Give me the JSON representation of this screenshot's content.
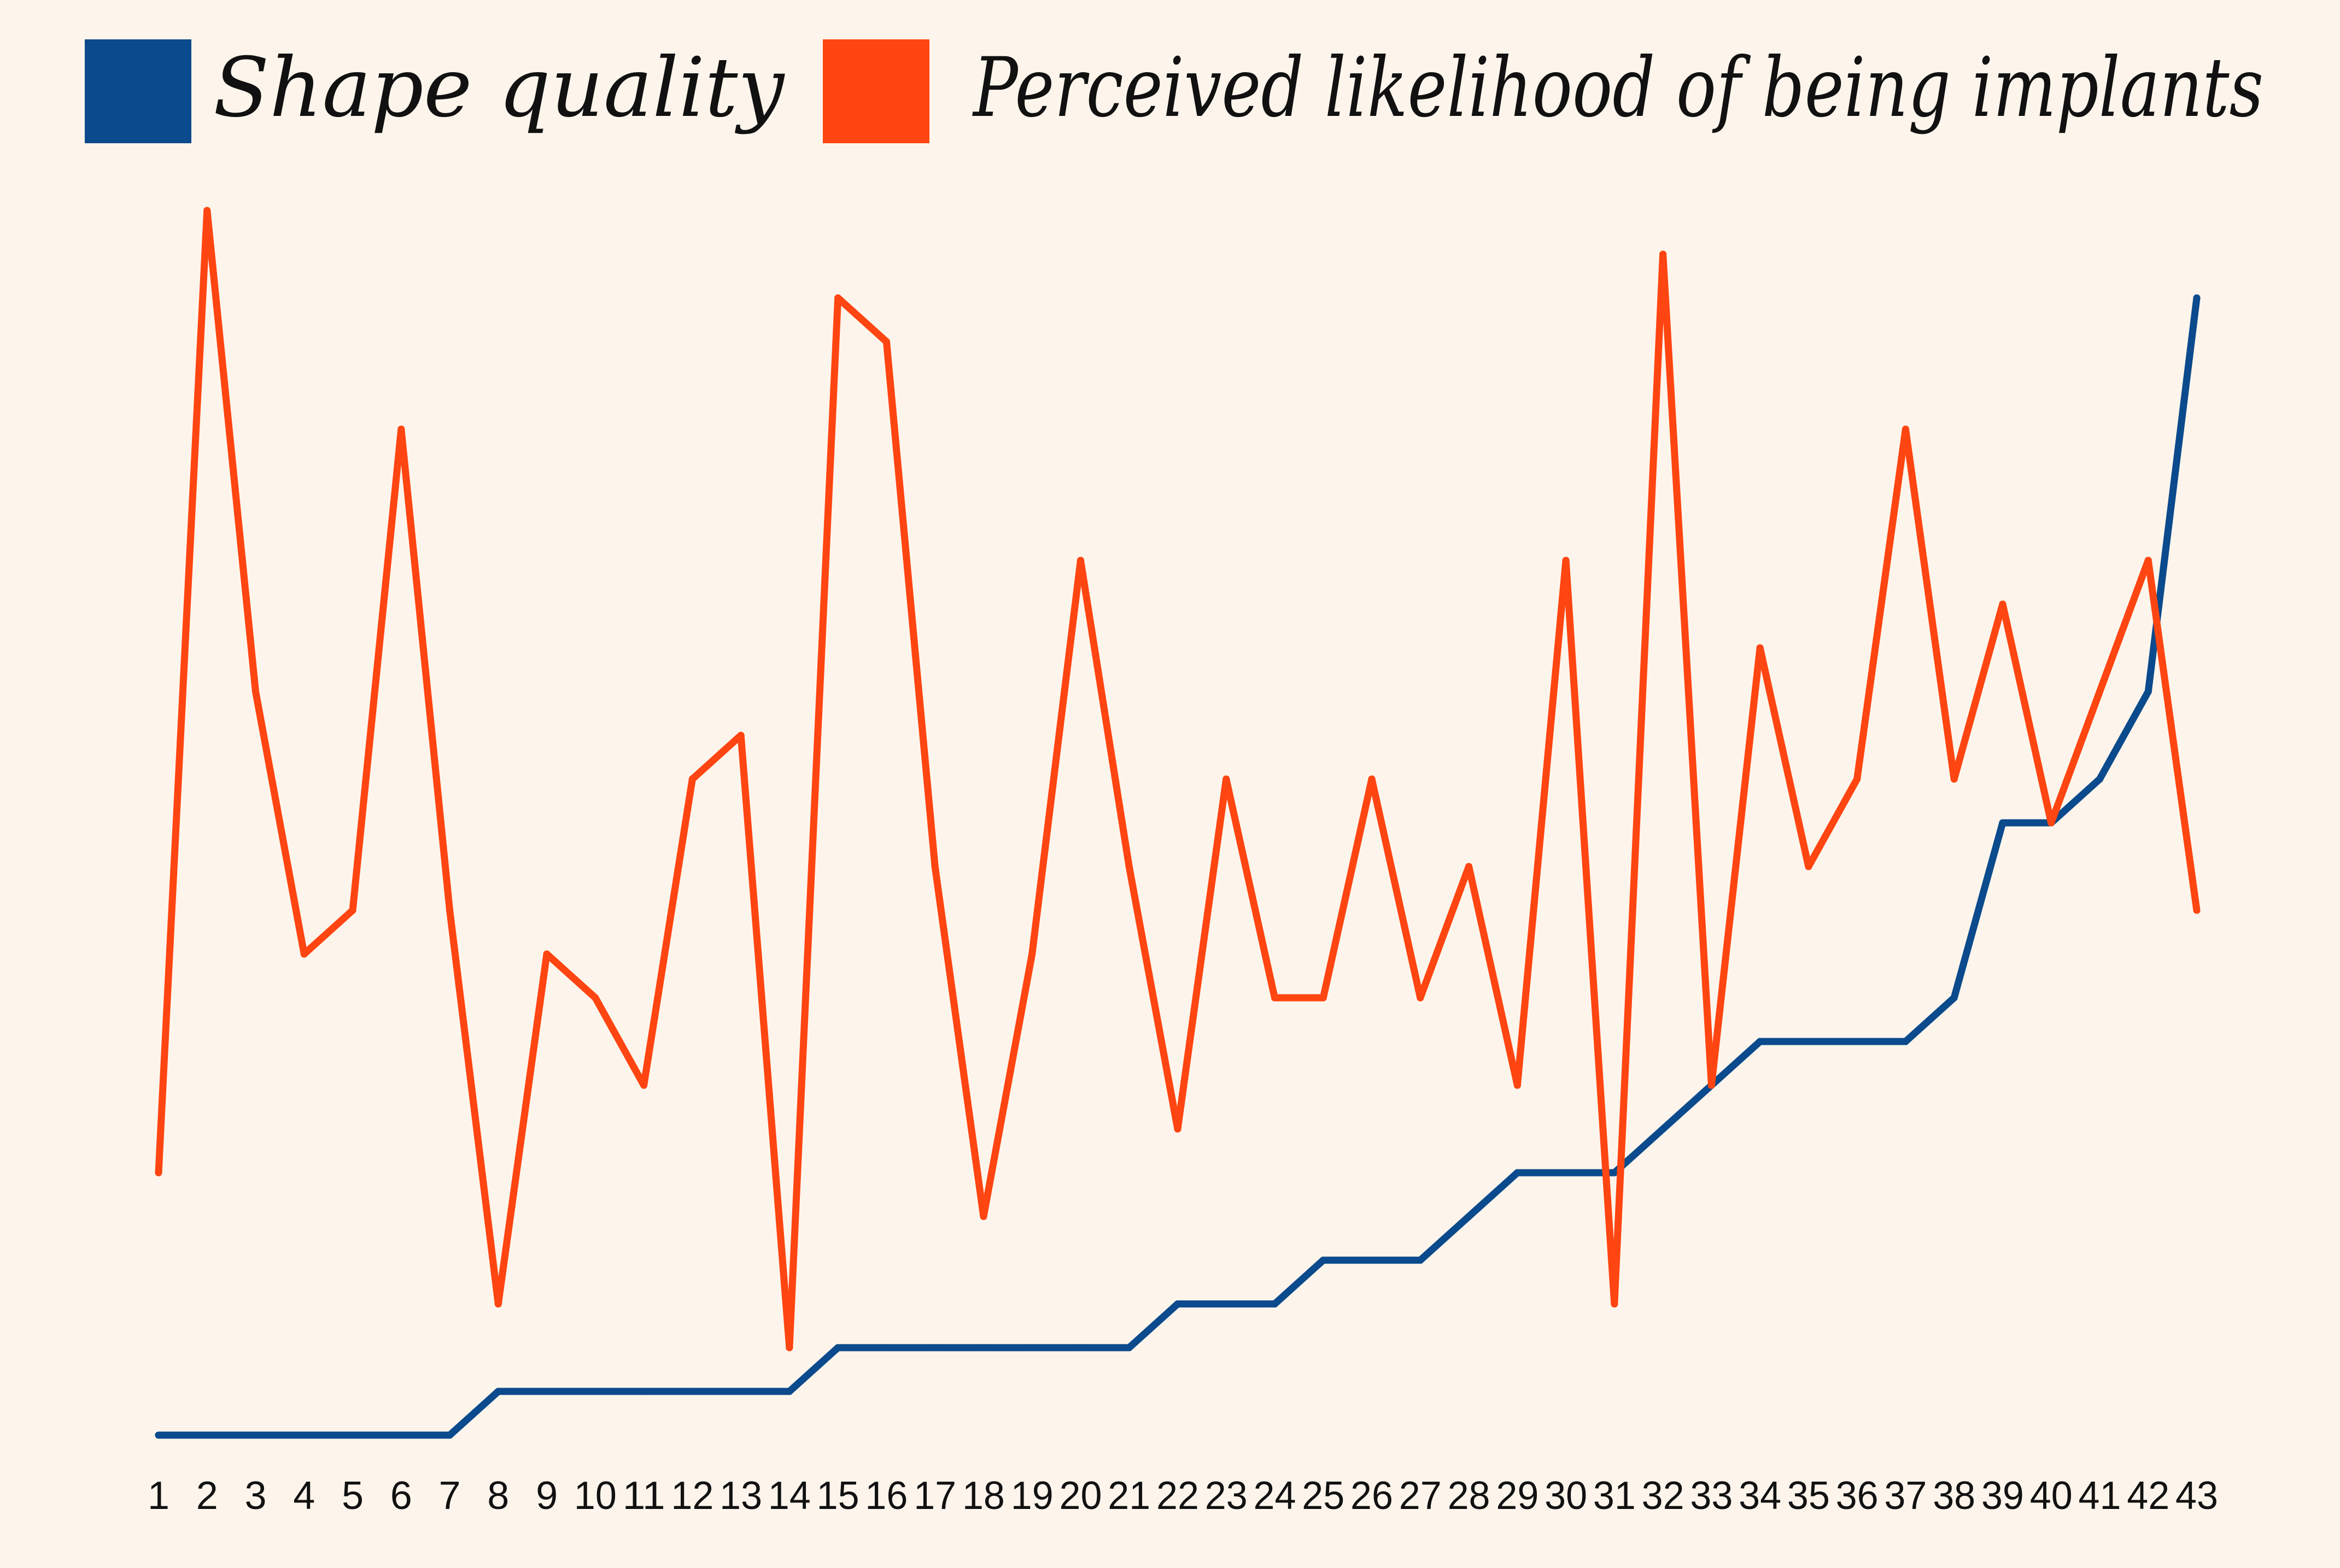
{
  "chart_data": {
    "type": "line",
    "title": "",
    "xlabel": "",
    "ylabel": "",
    "categories": [
      "1",
      "2",
      "3",
      "4",
      "5",
      "6",
      "7",
      "8",
      "9",
      "10",
      "11",
      "12",
      "13",
      "14",
      "15",
      "16",
      "17",
      "18",
      "19",
      "20",
      "21",
      "22",
      "23",
      "24",
      "25",
      "26",
      "27",
      "28",
      "29",
      "30",
      "31",
      "32",
      "33",
      "34",
      "35",
      "36",
      "37",
      "38",
      "39",
      "40",
      "41",
      "42",
      "43"
    ],
    "ylim": [
      0,
      30
    ],
    "grid": false,
    "legend_position": "top",
    "series": [
      {
        "name": "Shape quality",
        "color": "#0b4a8c",
        "values": [
          0,
          0,
          0,
          0,
          0,
          0,
          0,
          1,
          1,
          1,
          1,
          1,
          1,
          1,
          2,
          2,
          2,
          2,
          2,
          2,
          2,
          3,
          3,
          3,
          4,
          4,
          4,
          5,
          6,
          6,
          6,
          7,
          8,
          9,
          9,
          9,
          9,
          10,
          14,
          14,
          15,
          17,
          26
        ]
      },
      {
        "name": "Perceived likelihood of being implants",
        "color": "#ff4511",
        "values": [
          6,
          28,
          17,
          11,
          12,
          23,
          12,
          3,
          11,
          10,
          8,
          15,
          16,
          2,
          26,
          25,
          13,
          5,
          11,
          20,
          13,
          7,
          15,
          10,
          10,
          15,
          10,
          13,
          8,
          20,
          3,
          27,
          8,
          18,
          13,
          15,
          23,
          15,
          19,
          14,
          17,
          20,
          12
        ]
      }
    ]
  }
}
